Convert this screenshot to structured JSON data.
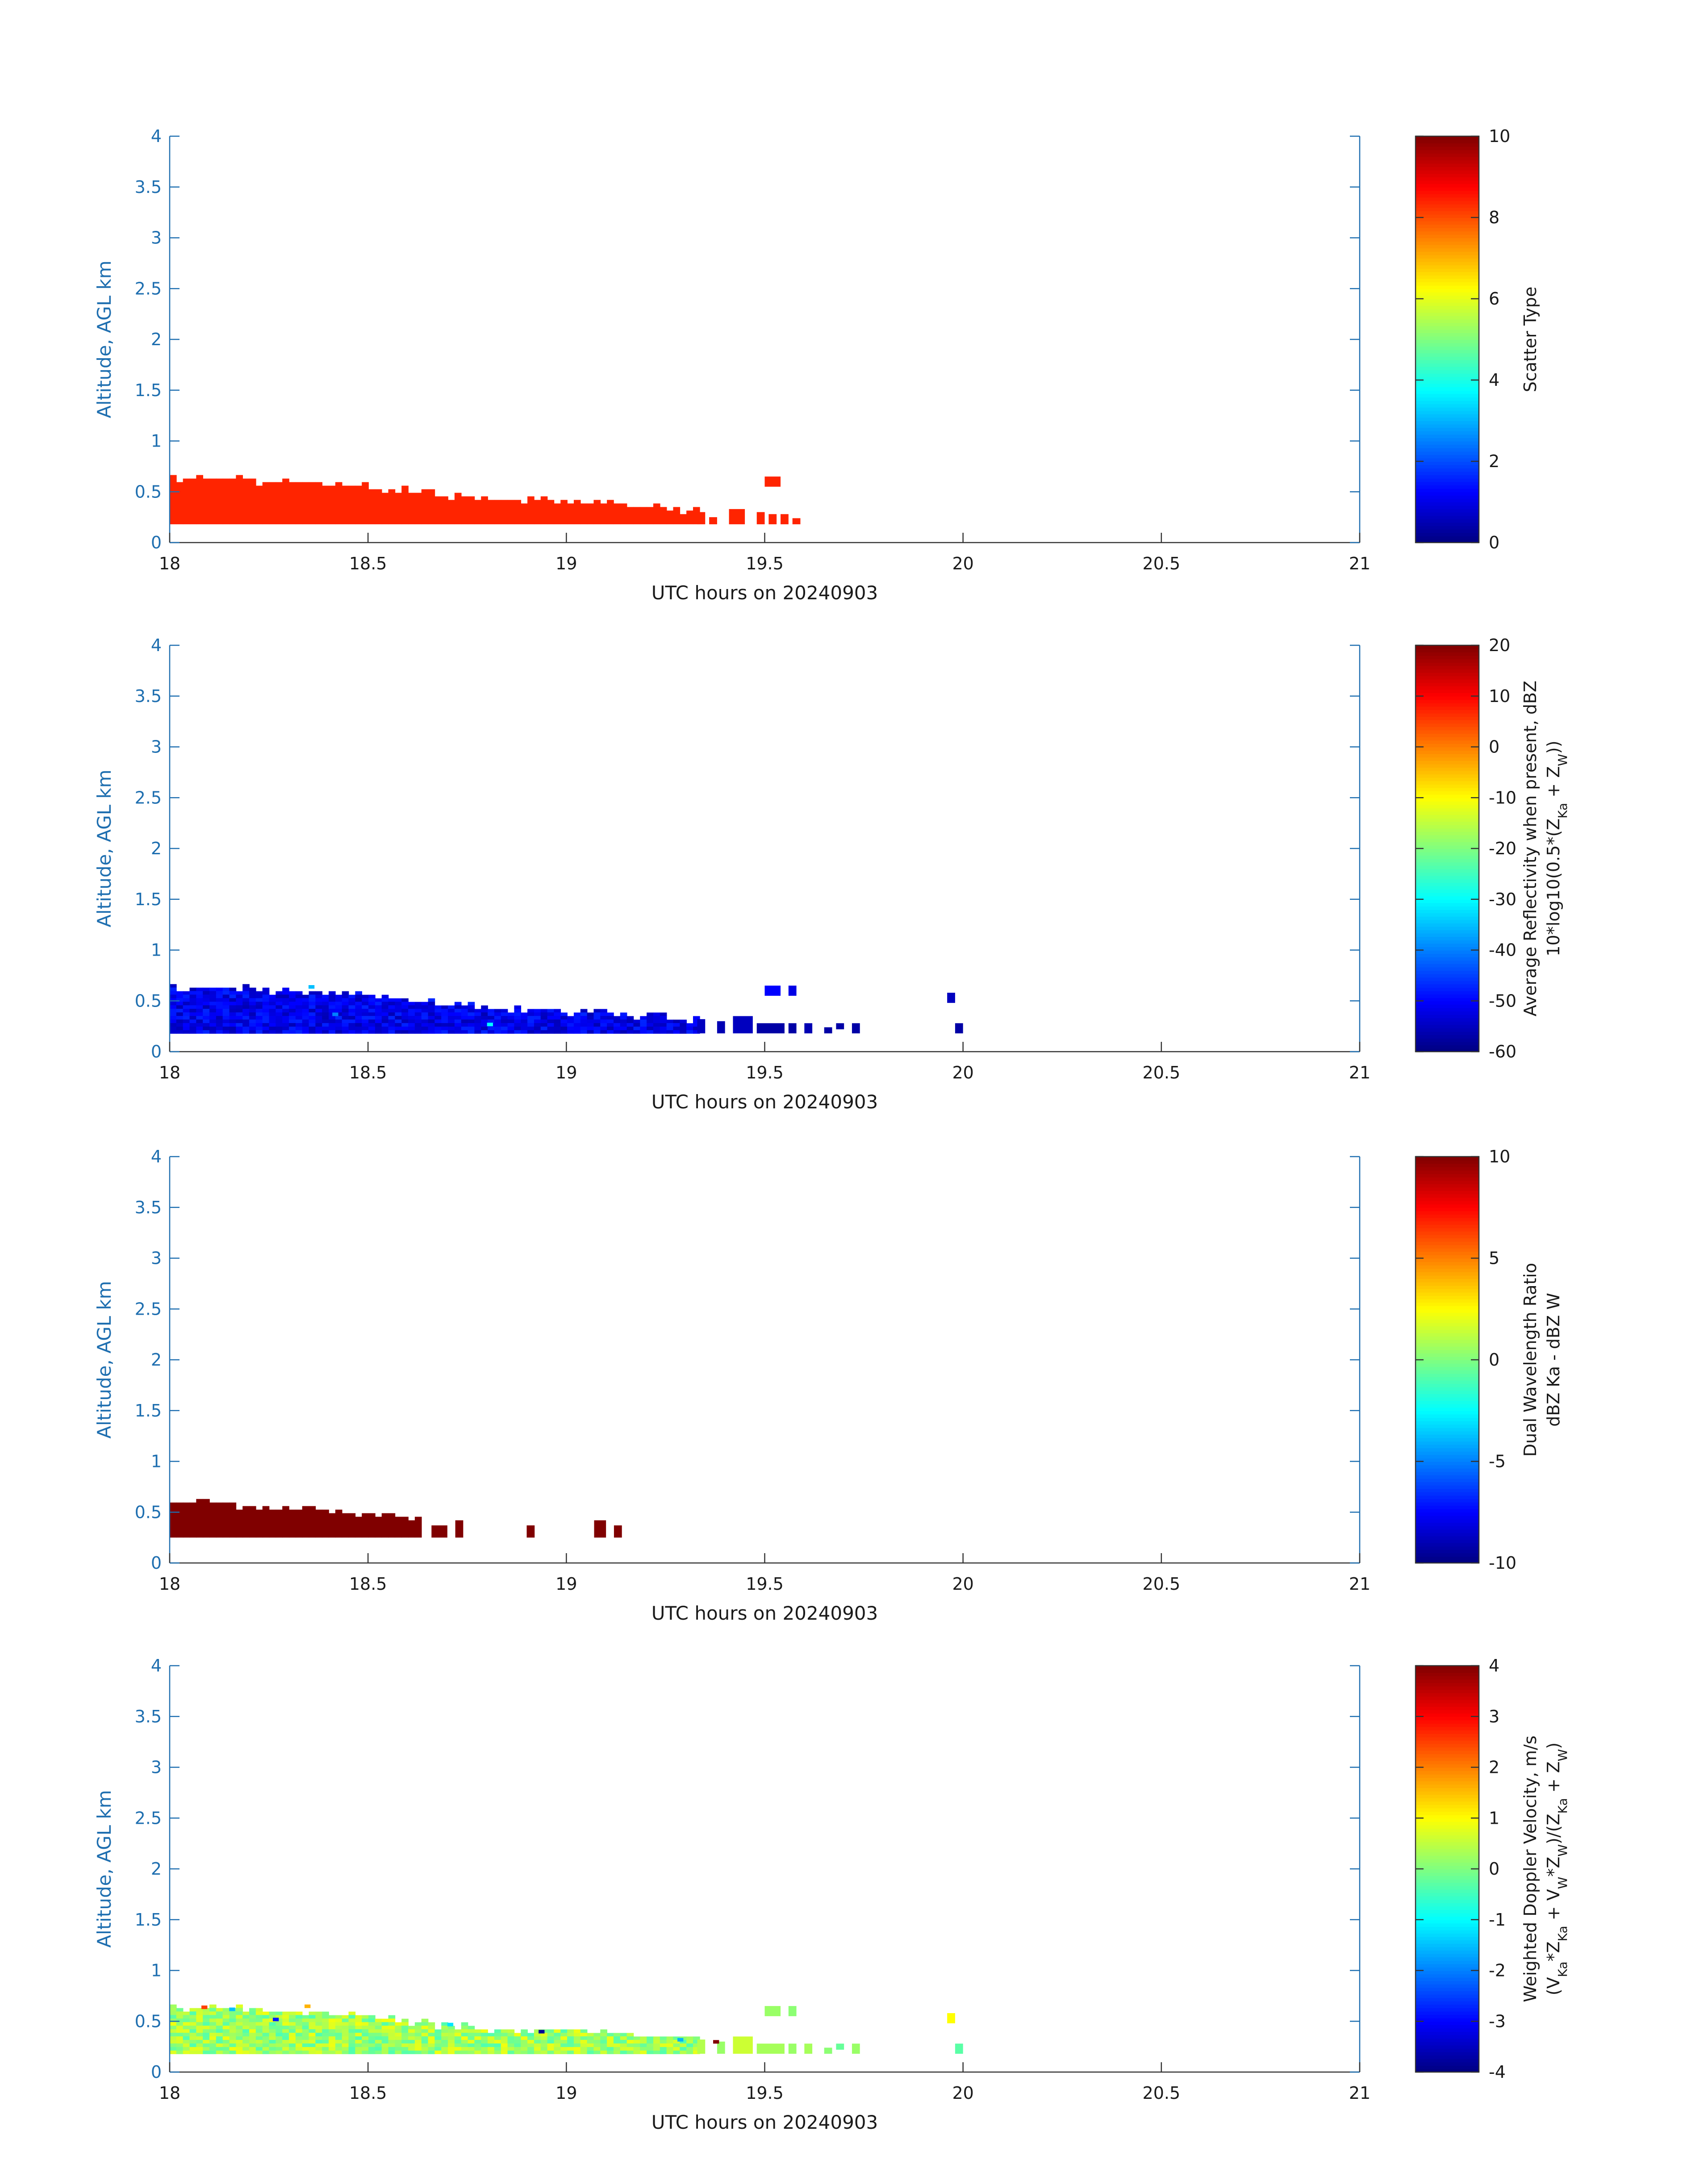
{
  "chart_data": [
    {
      "type": "heatmap",
      "xlabel": "UTC hours on 20240903",
      "ylabel": "Altitude, AGL km",
      "xlim": [
        18,
        21
      ],
      "ylim": [
        0,
        4
      ],
      "xticks": [
        "18",
        "18.5",
        "19",
        "19.5",
        "20",
        "20.5",
        "21"
      ],
      "yticks": [
        "0",
        "0.5",
        "1",
        "1.5",
        "2",
        "2.5",
        "3",
        "3.5",
        "4"
      ],
      "colorbar": {
        "label_lines": [
          "Scatter Type"
        ],
        "range": [
          0,
          10
        ],
        "ticks": [
          "0",
          "2",
          "4",
          "6",
          "8",
          "10"
        ]
      },
      "profile": [
        [
          18.0,
          0.65
        ],
        [
          18.15,
          0.62
        ],
        [
          18.3,
          0.6
        ],
        [
          18.5,
          0.55
        ],
        [
          18.7,
          0.45
        ],
        [
          18.9,
          0.42
        ],
        [
          19.1,
          0.38
        ],
        [
          19.25,
          0.33
        ],
        [
          19.32,
          0.3
        ]
      ],
      "bottom": 0.18,
      "uniform_value": 8.4,
      "blocks": [
        [
          19.5,
          19.54,
          0.55,
          0.65
        ],
        [
          19.33,
          19.35,
          0.18,
          0.3
        ],
        [
          19.36,
          19.38,
          0.18,
          0.25
        ],
        [
          19.41,
          19.45,
          0.18,
          0.33
        ],
        [
          19.48,
          19.5,
          0.18,
          0.3
        ],
        [
          19.51,
          19.53,
          0.18,
          0.28
        ],
        [
          19.54,
          19.56,
          0.18,
          0.28
        ],
        [
          19.57,
          19.59,
          0.18,
          0.24
        ]
      ]
    },
    {
      "type": "heatmap",
      "xlabel": "UTC hours on 20240903",
      "ylabel": "Altitude, AGL km",
      "xlim": [
        18,
        21
      ],
      "ylim": [
        0,
        4
      ],
      "xticks": [
        "18",
        "18.5",
        "19",
        "19.5",
        "20",
        "20.5",
        "21"
      ],
      "yticks": [
        "0",
        "0.5",
        "1",
        "1.5",
        "2",
        "2.5",
        "3",
        "3.5",
        "4"
      ],
      "colorbar": {
        "label_lines": [
          "Average Reflectivity when present, dBZ",
          "10*log10(0.5*(Z_Ka + Z_W))"
        ],
        "range": [
          -60,
          20
        ],
        "ticks": [
          "-60",
          "-50",
          "-40",
          "-30",
          "-20",
          "-10",
          "0",
          "10",
          "20"
        ]
      },
      "profile": [
        [
          18.0,
          0.65
        ],
        [
          18.15,
          0.62
        ],
        [
          18.3,
          0.6
        ],
        [
          18.5,
          0.55
        ],
        [
          18.7,
          0.45
        ],
        [
          18.9,
          0.42
        ],
        [
          19.1,
          0.38
        ],
        [
          19.25,
          0.33
        ],
        [
          19.32,
          0.3
        ]
      ],
      "bottom": 0.18,
      "value_range": [
        -56,
        -47
      ],
      "blocks": [
        [
          19.5,
          19.54,
          0.55,
          0.65,
          -50
        ],
        [
          19.56,
          19.58,
          0.55,
          0.65,
          -52
        ],
        [
          19.96,
          19.98,
          0.48,
          0.58,
          -55
        ],
        [
          19.33,
          19.35,
          0.18,
          0.32,
          -55
        ],
        [
          19.38,
          19.4,
          0.18,
          0.3,
          -56
        ],
        [
          19.42,
          19.47,
          0.18,
          0.35,
          -55
        ],
        [
          19.48,
          19.55,
          0.18,
          0.28,
          -57
        ],
        [
          19.56,
          19.58,
          0.18,
          0.28,
          -57
        ],
        [
          19.6,
          19.62,
          0.18,
          0.28,
          -56
        ],
        [
          19.65,
          19.67,
          0.18,
          0.24,
          -57
        ],
        [
          19.68,
          19.7,
          0.22,
          0.28,
          -57
        ],
        [
          19.72,
          19.74,
          0.18,
          0.28,
          -57
        ],
        [
          19.98,
          20.0,
          0.18,
          0.28,
          -57
        ]
      ],
      "specks": [
        [
          18.35,
          0.62,
          -35
        ],
        [
          18.8,
          0.25,
          -30
        ],
        [
          18.41,
          0.35,
          -40
        ]
      ]
    },
    {
      "type": "heatmap",
      "xlabel": "UTC hours on 20240903",
      "ylabel": "Altitude, AGL km",
      "xlim": [
        18,
        21
      ],
      "ylim": [
        0,
        4
      ],
      "xticks": [
        "18",
        "18.5",
        "19",
        "19.5",
        "20",
        "20.5",
        "21"
      ],
      "yticks": [
        "0",
        "0.5",
        "1",
        "1.5",
        "2",
        "2.5",
        "3",
        "3.5",
        "4"
      ],
      "colorbar": {
        "label_lines": [
          "Dual Wavelength Ratio",
          "dBZ Ka - dBZ W"
        ],
        "range": [
          -10,
          10
        ],
        "ticks": [
          "-10",
          "-5",
          "0",
          "5",
          "10"
        ]
      },
      "profile": [
        [
          18.0,
          0.6
        ],
        [
          18.15,
          0.58
        ],
        [
          18.25,
          0.52
        ],
        [
          18.35,
          0.55
        ],
        [
          18.4,
          0.5
        ],
        [
          18.55,
          0.48
        ],
        [
          18.6,
          0.45
        ],
        [
          18.63,
          0.45
        ]
      ],
      "bottom": 0.25,
      "uniform_value": 10,
      "blocks": [
        [
          18.66,
          18.7,
          0.25,
          0.37
        ],
        [
          18.72,
          18.74,
          0.25,
          0.42
        ],
        [
          18.9,
          18.92,
          0.25,
          0.37
        ],
        [
          19.07,
          19.1,
          0.25,
          0.42
        ],
        [
          19.12,
          19.14,
          0.25,
          0.37
        ]
      ]
    },
    {
      "type": "heatmap",
      "xlabel": "UTC hours on 20240903",
      "ylabel": "Altitude, AGL km",
      "xlim": [
        18,
        21
      ],
      "ylim": [
        0,
        4
      ],
      "xticks": [
        "18",
        "18.5",
        "19",
        "19.5",
        "20",
        "20.5",
        "21"
      ],
      "yticks": [
        "0",
        "0.5",
        "1",
        "1.5",
        "2",
        "2.5",
        "3",
        "3.5",
        "4"
      ],
      "colorbar": {
        "label_lines": [
          "Weighted Doppler Velocity, m/s",
          "(V_Ka*Z_Ka + V_W*Z_W)/(Z_Ka + Z_W)"
        ],
        "range": [
          -4,
          4
        ],
        "ticks": [
          "-4",
          "-3",
          "-2",
          "-1",
          "0",
          "1",
          "2",
          "3",
          "4"
        ]
      },
      "profile": [
        [
          18.0,
          0.65
        ],
        [
          18.15,
          0.62
        ],
        [
          18.3,
          0.6
        ],
        [
          18.5,
          0.55
        ],
        [
          18.7,
          0.45
        ],
        [
          18.9,
          0.42
        ],
        [
          19.1,
          0.38
        ],
        [
          19.25,
          0.33
        ],
        [
          19.32,
          0.3
        ]
      ],
      "bottom": 0.18,
      "value_range": [
        -0.4,
        0.9
      ],
      "blocks": [
        [
          19.5,
          19.54,
          0.55,
          0.65,
          0.2
        ],
        [
          19.56,
          19.58,
          0.55,
          0.65,
          0.1
        ],
        [
          19.96,
          19.98,
          0.48,
          0.58,
          1.0
        ],
        [
          19.33,
          19.35,
          0.18,
          0.32,
          0.4
        ],
        [
          19.38,
          19.4,
          0.18,
          0.3,
          0.2
        ],
        [
          19.42,
          19.47,
          0.18,
          0.35,
          0.6
        ],
        [
          19.48,
          19.55,
          0.18,
          0.28,
          0.3
        ],
        [
          19.56,
          19.58,
          0.18,
          0.28,
          0.2
        ],
        [
          19.6,
          19.62,
          0.18,
          0.28,
          0.3
        ],
        [
          19.65,
          19.67,
          0.18,
          0.24,
          0.1
        ],
        [
          19.68,
          19.7,
          0.22,
          0.28,
          -0.2
        ],
        [
          19.72,
          19.74,
          0.18,
          0.28,
          0.2
        ],
        [
          19.98,
          20.0,
          0.18,
          0.28,
          -0.3
        ]
      ],
      "specks": [
        [
          18.15,
          0.6,
          -1.5
        ],
        [
          18.26,
          0.5,
          -2.8
        ],
        [
          18.34,
          0.63,
          1.6
        ],
        [
          18.93,
          0.38,
          -3.8
        ],
        [
          19.37,
          0.28,
          4.0
        ],
        [
          18.7,
          0.45,
          -1.2
        ],
        [
          18.08,
          0.62,
          2.5
        ],
        [
          19.28,
          0.3,
          -1.6
        ]
      ]
    }
  ]
}
